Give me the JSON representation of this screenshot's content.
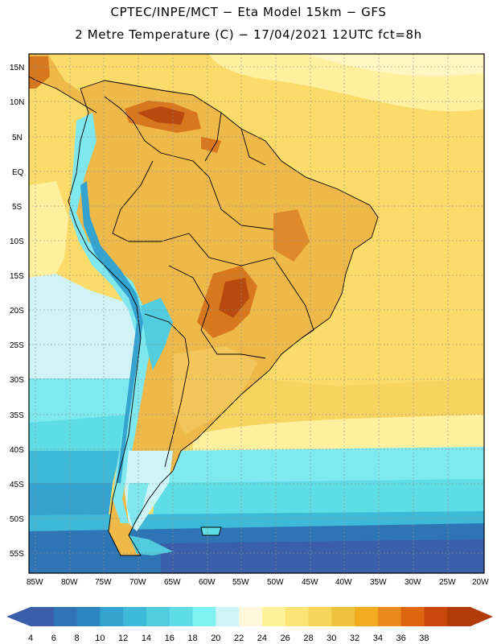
{
  "header": {
    "line1": "CPTEC/INPE/MCT  −   Eta Model 15km  −  GFS",
    "line2": "2 Metre Temperature (C)  −  17/04/2021 12UTC fct=8h"
  },
  "map": {
    "lat_labels": [
      "15N",
      "10N",
      "5N",
      "EQ",
      "5S",
      "10S",
      "15S",
      "20S",
      "25S",
      "30S",
      "35S",
      "40S",
      "45S",
      "50S",
      "55S"
    ],
    "lon_labels": [
      "85W",
      "80W",
      "75W",
      "70W",
      "65W",
      "60W",
      "55W",
      "50W",
      "45W",
      "40W",
      "35W",
      "30W",
      "25W",
      "20W"
    ]
  },
  "colorbar": {
    "labels": [
      "4",
      "6",
      "8",
      "10",
      "12",
      "14",
      "16",
      "18",
      "20",
      "22",
      "24",
      "26",
      "28",
      "30",
      "32",
      "34",
      "36",
      "38"
    ],
    "colors": [
      "#3a5fa8",
      "#2f74b5",
      "#2d86c0",
      "#35a3cf",
      "#3ebad8",
      "#52ccdf",
      "#5fdde6",
      "#7ef2f2",
      "#cdf5f7",
      "#fff6dc",
      "#fff39a",
      "#fbe374",
      "#f7d45a",
      "#efc23e",
      "#f2aa1e",
      "#ea8a1c",
      "#de6610",
      "#c9460d",
      "#b23b0a"
    ],
    "arrow_left_color": "#3a5fa8",
    "arrow_right_color": "#b23b0a"
  },
  "colors": {
    "ocean_far": "#fff0a3",
    "ocean_mid": "#f9da6a",
    "land": "#efb94a",
    "hot": "#d8781e",
    "hottest": "#a93c0a",
    "cool_coast": "#7ee8ee",
    "cold_south": "#2f6fb4"
  }
}
